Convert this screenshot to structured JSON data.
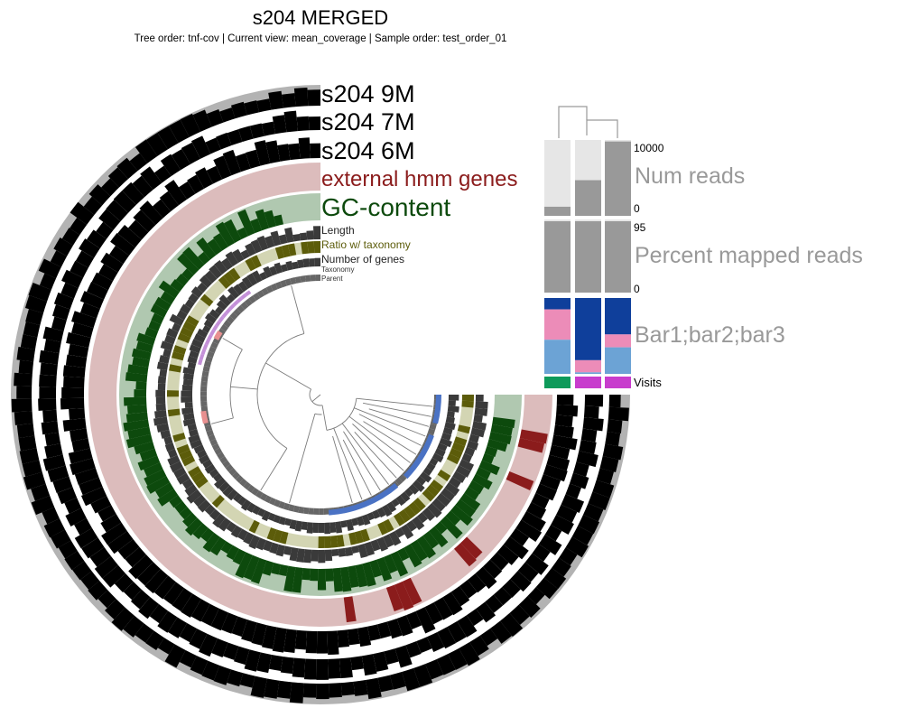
{
  "header": {
    "title": "s204 MERGED",
    "subtitle": "Tree order: tnf-cov | Current view: mean_coverage | Sample order: test_order_01"
  },
  "layers": [
    {
      "label": "s204 9M",
      "color": "#000000"
    },
    {
      "label": "s204 7M",
      "color": "#000000"
    },
    {
      "label": "s204 6M",
      "color": "#000000"
    },
    {
      "label": "external hmm genes",
      "color": "#8b1c1c"
    },
    {
      "label": "GC-content",
      "color": "#0d4a0d"
    },
    {
      "label": "Length",
      "color": "#333333"
    },
    {
      "label": "Ratio w/ taxonomy",
      "color": "#5c5c0a"
    },
    {
      "label": "Number of genes",
      "color": "#333333"
    },
    {
      "label": "Taxonomy",
      "color": "#c490d8"
    },
    {
      "label": "Parent",
      "color": "#555555"
    }
  ],
  "samples": {
    "num_reads": {
      "label": "Num reads",
      "max": "10000",
      "min": "0"
    },
    "percent_mapped": {
      "label": "Percent mapped reads",
      "max": "95",
      "min": "0"
    },
    "bars": {
      "label": "Bar1;bar2;bar3"
    },
    "visits": {
      "label": "Visits"
    }
  },
  "colors": {
    "black_layer": "#000000",
    "black_layer_bg": "#b3b3b3",
    "hmm": "#8b1c1c",
    "hmm_bg": "#dcbcbc",
    "gc": "#0d4a0d",
    "gc_bg": "#b0c8b0",
    "length": "#3a3a3a",
    "ratio": "#5c5c0a",
    "ratio_bg": "#d3d5b3",
    "taxonomy": "#c490d8",
    "parent": "#666666",
    "collection_blue": "#4a72c4",
    "collection_red": "#e89090",
    "bar_navy": "#0f3f9b",
    "bar_pink": "#ec8cb8",
    "bar_lightblue": "#6ca3d5",
    "visits_green": "#0e9a5a",
    "visits_magenta": "#c83ccd",
    "sample_gray": "#999999",
    "sample_light": "#e6e6e6"
  }
}
